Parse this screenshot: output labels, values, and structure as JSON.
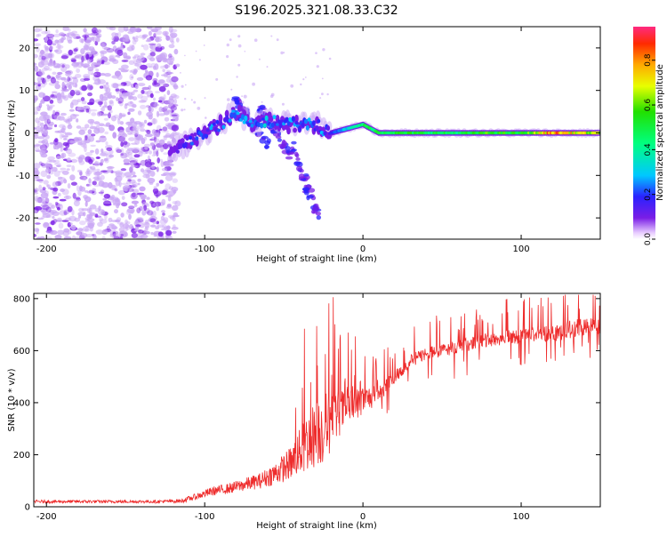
{
  "title": "S196.2025.321.08.33.C32",
  "colors": {
    "snr_line": "#ee2c2c",
    "axis": "#000000",
    "scatter_purple": "#7a1ee6",
    "scatter_light": "#c9a6f5"
  },
  "chart_data": [
    {
      "type": "heatmap",
      "name": "spectrogram",
      "title": "S196.2025.321.08.33.C32",
      "xlabel": "Height of straight line (km)",
      "ylabel": "Frequency (Hz)",
      "xlim": [
        -208,
        150
      ],
      "ylim": [
        -25,
        25
      ],
      "xticks": [
        -200,
        -100,
        0,
        100
      ],
      "yticks": [
        -20,
        -10,
        0,
        10,
        20
      ],
      "xtick_labels": [
        "-200",
        "-100",
        "0",
        "100"
      ],
      "ytick_labels": [
        "-20",
        "-10",
        "0",
        "10",
        "20"
      ],
      "colorbar": {
        "label": "Normalized spectral amplitude",
        "range": [
          0.0,
          0.95
        ],
        "ticks": [
          0.0,
          0.2,
          0.4,
          0.6,
          0.8
        ],
        "tick_labels": [
          "0.0",
          "0.2",
          "0.4",
          "0.6",
          "0.8"
        ]
      },
      "regions": [
        {
          "desc": "noise",
          "x": [
            -208,
            -117
          ],
          "freq": [
            -25,
            25
          ],
          "amp": 0.1
        },
        {
          "desc": "sparse scatter",
          "x": [
            -117,
            -20
          ],
          "freq": [
            -25,
            25
          ],
          "amp": 0.08
        }
      ],
      "ridges": [
        {
          "x": -120,
          "f": -4,
          "amp": 0.12
        },
        {
          "x": -110,
          "f": -2,
          "amp": 0.15
        },
        {
          "x": -100,
          "f": 0,
          "amp": 0.2
        },
        {
          "x": -90,
          "f": 2,
          "amp": 0.18
        },
        {
          "x": -80,
          "f": 5,
          "amp": 0.22
        },
        {
          "x": -70,
          "f": 2,
          "amp": 0.2
        },
        {
          "x": -60,
          "f": 3,
          "amp": 0.25
        },
        {
          "x": -50,
          "f": 2,
          "amp": 0.22
        },
        {
          "x": -40,
          "f": 2,
          "amp": 0.25
        },
        {
          "x": -30,
          "f": 2,
          "amp": 0.2
        },
        {
          "x": -20,
          "f": 0,
          "amp": 0.2
        },
        {
          "x": -10,
          "f": 1,
          "amp": 0.3
        },
        {
          "x": 0,
          "f": 2,
          "amp": 0.45
        },
        {
          "x": 10,
          "f": 0,
          "amp": 0.5
        },
        {
          "x": 30,
          "f": 0,
          "amp": 0.5
        },
        {
          "x": 60,
          "f": 0,
          "amp": 0.45
        },
        {
          "x": 80,
          "f": 0,
          "amp": 0.55
        },
        {
          "x": 100,
          "f": 0,
          "amp": 0.5
        },
        {
          "x": 120,
          "f": 0,
          "amp": 0.8
        },
        {
          "x": 150,
          "f": 0,
          "amp": 0.6
        }
      ],
      "branches": [
        {
          "x": [
            -80,
            -60
          ],
          "f": [
            8,
            -3
          ]
        },
        {
          "x": [
            -65,
            -45
          ],
          "f": [
            6,
            -6
          ]
        },
        {
          "x": [
            -45,
            -28
          ],
          "f": [
            -3,
            -20
          ]
        }
      ]
    },
    {
      "type": "line",
      "name": "snr",
      "xlabel": "Height of straight line (km)",
      "ylabel": "SNR (10 * v/v)",
      "xlim": [
        -208,
        150
      ],
      "ylim": [
        0,
        820
      ],
      "xticks": [
        -200,
        -100,
        0,
        100
      ],
      "yticks": [
        0,
        200,
        400,
        600,
        800
      ],
      "xtick_labels": [
        "-200",
        "-100",
        "0",
        "100"
      ],
      "ytick_labels": [
        "0",
        "200",
        "400",
        "600",
        "800"
      ],
      "series": [
        {
          "name": "SNR",
          "x": [
            -208,
            -190,
            -170,
            -150,
            -130,
            -115,
            -105,
            -95,
            -85,
            -75,
            -65,
            -55,
            -45,
            -40,
            -35,
            -30,
            -25,
            -20,
            -15,
            -10,
            -5,
            0,
            5,
            10,
            15,
            20,
            25,
            30,
            40,
            50,
            60,
            70,
            80,
            90,
            100,
            110,
            120,
            130,
            140,
            150
          ],
          "values": [
            20,
            20,
            20,
            20,
            20,
            22,
            40,
            60,
            70,
            85,
            100,
            130,
            170,
            210,
            250,
            280,
            300,
            330,
            360,
            380,
            390,
            410,
            420,
            430,
            470,
            500,
            530,
            560,
            590,
            600,
            615,
            630,
            640,
            650,
            655,
            665,
            670,
            680,
            690,
            695
          ],
          "spread": [
            12,
            12,
            12,
            12,
            12,
            15,
            25,
            35,
            40,
            50,
            60,
            90,
            130,
            180,
            230,
            260,
            280,
            250,
            180,
            140,
            130,
            110,
            90,
            70,
            60,
            55,
            50,
            50,
            50,
            50,
            50,
            50,
            55,
            55,
            60,
            60,
            70,
            70,
            70,
            70
          ]
        }
      ]
    }
  ]
}
